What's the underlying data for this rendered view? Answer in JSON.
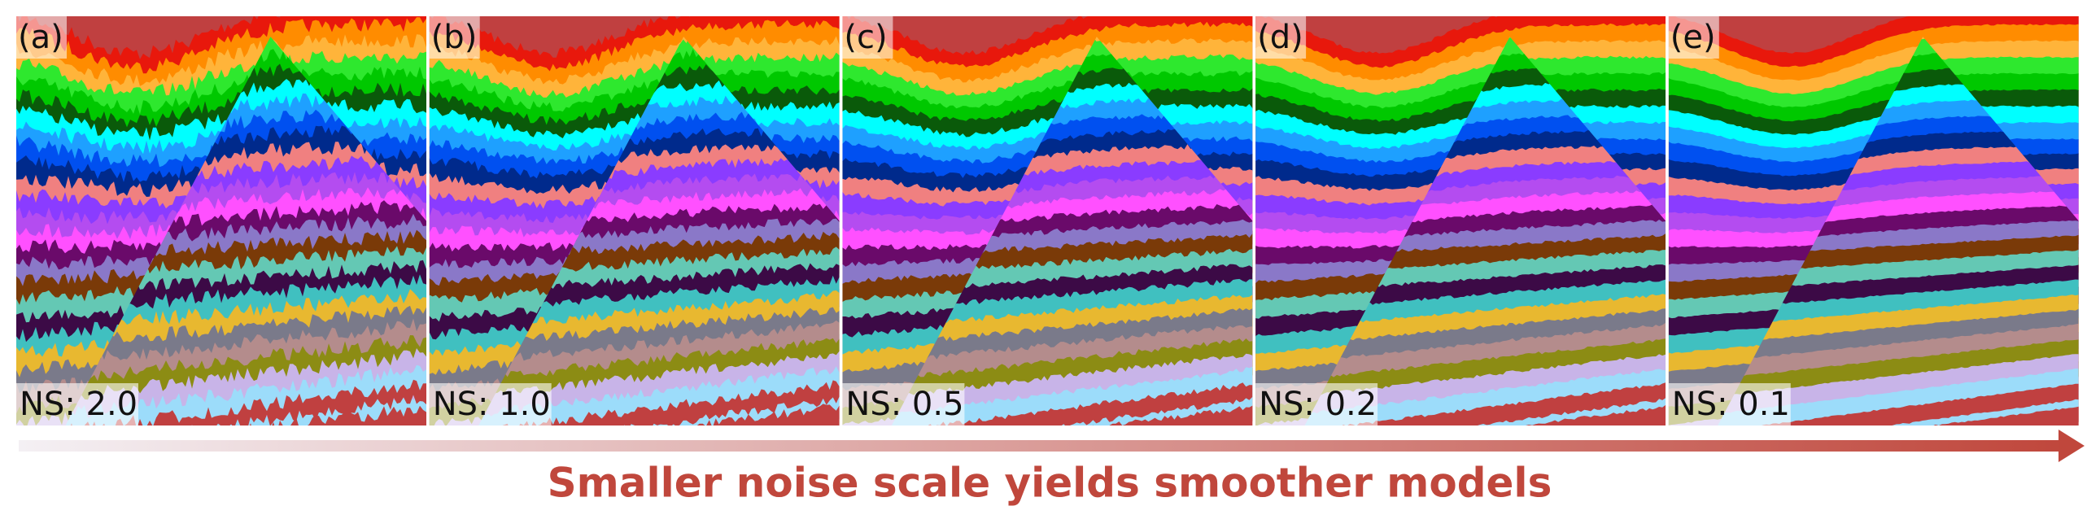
{
  "panels": [
    {
      "label": "(a)",
      "ns": "NS: 2.0"
    },
    {
      "label": "(b)",
      "ns": "NS: 1.0"
    },
    {
      "label": "(c)",
      "ns": "NS: 0.5"
    },
    {
      "label": "(d)",
      "ns": "NS: 0.2"
    },
    {
      "label": "(e)",
      "ns": "NS: 0.1"
    }
  ],
  "caption": "Smaller noise scale yields smoother models"
}
